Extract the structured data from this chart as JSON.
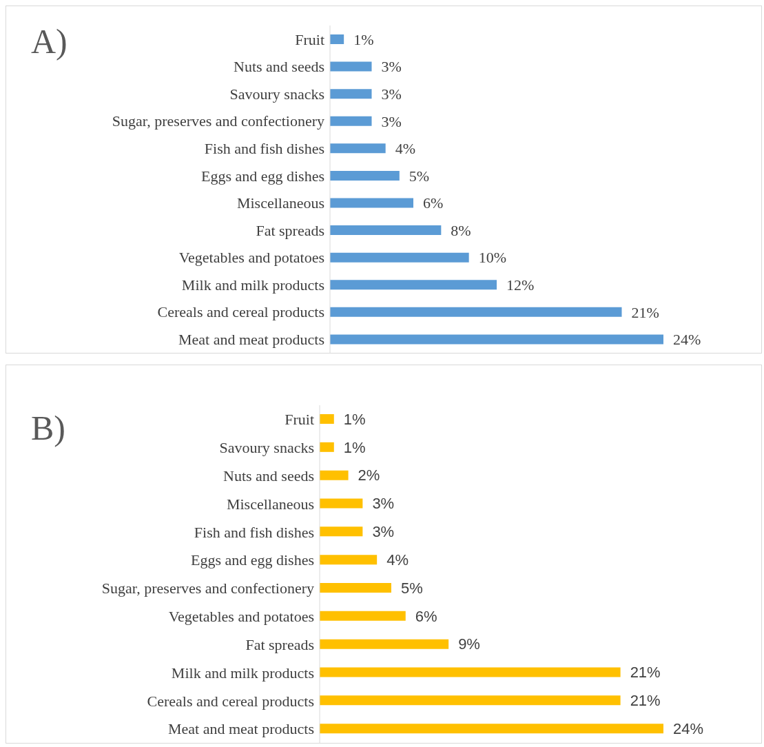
{
  "chart_data": [
    {
      "type": "bar",
      "orientation": "horizontal",
      "title": "A)",
      "categories": [
        "Fruit",
        "Nuts and seeds",
        "Savoury snacks",
        "Sugar, preserves and confectionery",
        "Fish and fish dishes",
        "Eggs and egg dishes",
        "Miscellaneous",
        "Fat spreads",
        "Vegetables and potatoes",
        "Milk and milk products",
        "Cereals and cereal products",
        "Meat and meat products"
      ],
      "values": [
        1,
        3,
        3,
        3,
        4,
        5,
        6,
        8,
        10,
        12,
        21,
        24
      ],
      "value_labels": [
        "1%",
        "3%",
        "3%",
        "3%",
        "4%",
        "5%",
        "6%",
        "8%",
        "10%",
        "12%",
        "21%",
        "24%"
      ],
      "color": "#5b9bd5"
    },
    {
      "type": "bar",
      "orientation": "horizontal",
      "title": "B)",
      "categories": [
        "Fruit",
        "Savoury snacks",
        "Nuts and seeds",
        "Miscellaneous",
        "Fish and fish dishes",
        "Eggs and egg dishes",
        "Sugar, preserves and confectionery",
        "Vegetables and potatoes",
        "Fat spreads",
        "Milk and milk products",
        "Cereals and cereal products",
        "Meat and meat products"
      ],
      "values": [
        1,
        1,
        2,
        3,
        3,
        4,
        5,
        6,
        9,
        21,
        21,
        24
      ],
      "value_labels": [
        "1%",
        "1%",
        "2%",
        "3%",
        "3%",
        "4%",
        "5%",
        "6%",
        "9%",
        "21%",
        "21%",
        "24%"
      ],
      "color": "#ffc000"
    }
  ]
}
